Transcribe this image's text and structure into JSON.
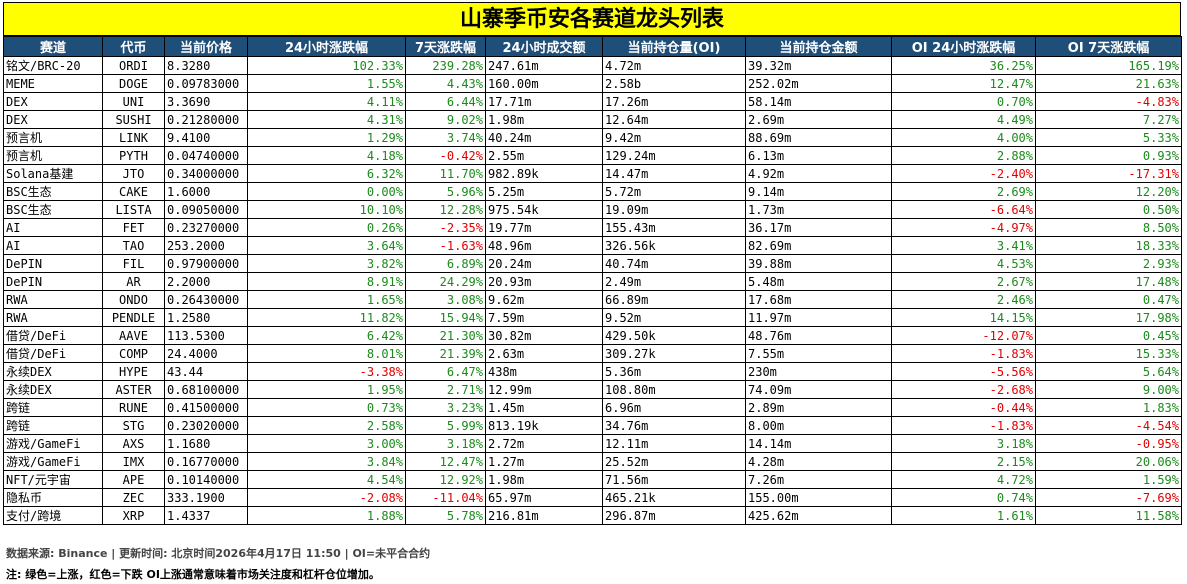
{
  "title": "山寨季币安各赛道龙头列表",
  "columns": [
    "赛道",
    "代币",
    "当前价格",
    "24小时涨跌幅",
    "7天涨跌幅",
    "24小时成交额",
    "当前持仓量(OI)",
    "当前持仓金额",
    "OI 24小时涨跌幅",
    "OI 7天涨跌幅"
  ],
  "rows": [
    [
      "铭文/BRC-20",
      "ORDI",
      "8.3280",
      "102.33%",
      "239.28%",
      "247.61m",
      "4.72m",
      "39.32m",
      "36.25%",
      "165.19%"
    ],
    [
      "MEME",
      "DOGE",
      "0.09783000",
      "1.55%",
      "4.43%",
      "160.00m",
      "2.58b",
      "252.02m",
      "12.47%",
      "21.63%"
    ],
    [
      "DEX",
      "UNI",
      "3.3690",
      "4.11%",
      "6.44%",
      "17.71m",
      "17.26m",
      "58.14m",
      "0.70%",
      "-4.83%"
    ],
    [
      "DEX",
      "SUSHI",
      "0.21280000",
      "4.31%",
      "9.02%",
      "1.98m",
      "12.64m",
      "2.69m",
      "4.49%",
      "7.27%"
    ],
    [
      "预言机",
      "LINK",
      "9.4100",
      "1.29%",
      "3.74%",
      "40.24m",
      "9.42m",
      "88.69m",
      "4.00%",
      "5.33%"
    ],
    [
      "预言机",
      "PYTH",
      "0.04740000",
      "4.18%",
      "-0.42%",
      "2.55m",
      "129.24m",
      "6.13m",
      "2.88%",
      "0.93%"
    ],
    [
      "Solana基建",
      "JTO",
      "0.34000000",
      "6.32%",
      "11.70%",
      "982.89k",
      "14.47m",
      "4.92m",
      "-2.40%",
      "-17.31%"
    ],
    [
      "BSC生态",
      "CAKE",
      "1.6000",
      "0.00%",
      "5.96%",
      "5.25m",
      "5.72m",
      "9.14m",
      "2.69%",
      "12.20%"
    ],
    [
      "BSC生态",
      "LISTA",
      "0.09050000",
      "10.10%",
      "12.28%",
      "975.54k",
      "19.09m",
      "1.73m",
      "-6.64%",
      "0.50%"
    ],
    [
      "AI",
      "FET",
      "0.23270000",
      "0.26%",
      "-2.35%",
      "19.77m",
      "155.43m",
      "36.17m",
      "-4.97%",
      "8.50%"
    ],
    [
      "AI",
      "TAO",
      "253.2000",
      "3.64%",
      "-1.63%",
      "48.96m",
      "326.56k",
      "82.69m",
      "3.41%",
      "18.33%"
    ],
    [
      "DePIN",
      "FIL",
      "0.97900000",
      "3.82%",
      "6.89%",
      "20.24m",
      "40.74m",
      "39.88m",
      "4.53%",
      "2.93%"
    ],
    [
      "DePIN",
      "AR",
      "2.2000",
      "8.91%",
      "24.29%",
      "20.93m",
      "2.49m",
      "5.48m",
      "2.67%",
      "17.48%"
    ],
    [
      "RWA",
      "ONDO",
      "0.26430000",
      "1.65%",
      "3.08%",
      "9.62m",
      "66.89m",
      "17.68m",
      "2.46%",
      "0.47%"
    ],
    [
      "RWA",
      "PENDLE",
      "1.2580",
      "11.82%",
      "15.94%",
      "7.59m",
      "9.52m",
      "11.97m",
      "14.15%",
      "17.98%"
    ],
    [
      "借贷/DeFi",
      "AAVE",
      "113.5300",
      "6.42%",
      "21.30%",
      "30.82m",
      "429.50k",
      "48.76m",
      "-12.07%",
      "0.45%"
    ],
    [
      "借贷/DeFi",
      "COMP",
      "24.4000",
      "8.01%",
      "21.39%",
      "2.63m",
      "309.27k",
      "7.55m",
      "-1.83%",
      "15.33%"
    ],
    [
      "永续DEX",
      "HYPE",
      "43.44",
      "-3.38%",
      "6.47%",
      "438m",
      "5.36m",
      "230m",
      "-5.56%",
      "5.64%"
    ],
    [
      "永续DEX",
      "ASTER",
      "0.68100000",
      "1.95%",
      "2.71%",
      "12.99m",
      "108.80m",
      "74.09m",
      "-2.68%",
      "9.00%"
    ],
    [
      "跨链",
      "RUNE",
      "0.41500000",
      "0.73%",
      "3.23%",
      "1.45m",
      "6.96m",
      "2.89m",
      "-0.44%",
      "1.83%"
    ],
    [
      "跨链",
      "STG",
      "0.23020000",
      "2.58%",
      "5.99%",
      "813.19k",
      "34.76m",
      "8.00m",
      "-1.83%",
      "-4.54%"
    ],
    [
      "游戏/GameFi",
      "AXS",
      "1.1680",
      "3.00%",
      "3.18%",
      "2.72m",
      "12.11m",
      "14.14m",
      "3.18%",
      "-0.95%"
    ],
    [
      "游戏/GameFi",
      "IMX",
      "0.16770000",
      "3.84%",
      "12.47%",
      "1.27m",
      "25.52m",
      "4.28m",
      "2.15%",
      "20.06%"
    ],
    [
      "NFT/元宇宙",
      "APE",
      "0.10140000",
      "4.54%",
      "12.92%",
      "1.98m",
      "71.56m",
      "7.26m",
      "4.72%",
      "1.59%"
    ],
    [
      "隐私币",
      "ZEC",
      "333.1900",
      "-2.08%",
      "-11.04%",
      "65.97m",
      "465.21k",
      "155.00m",
      "0.74%",
      "-7.69%"
    ],
    [
      "支付/跨境",
      "XRP",
      "1.4337",
      "1.88%",
      "5.78%",
      "216.81m",
      "296.87m",
      "425.62m",
      "1.61%",
      "11.58%"
    ]
  ],
  "footer": {
    "source": "数据来源: Binance | 更新时间: 北京时间2026年4月17日 11:50 | OI=未平合合约",
    "note": "注: 绿色=上涨，红色=下跌  OI上涨通常意味着市场关注度和杠杆仓位增加。"
  },
  "colors": {
    "header_bg": "#1f4e79",
    "title_bg": "#ffff00",
    "up": "#1a8a1a",
    "down": "#e00000"
  }
}
